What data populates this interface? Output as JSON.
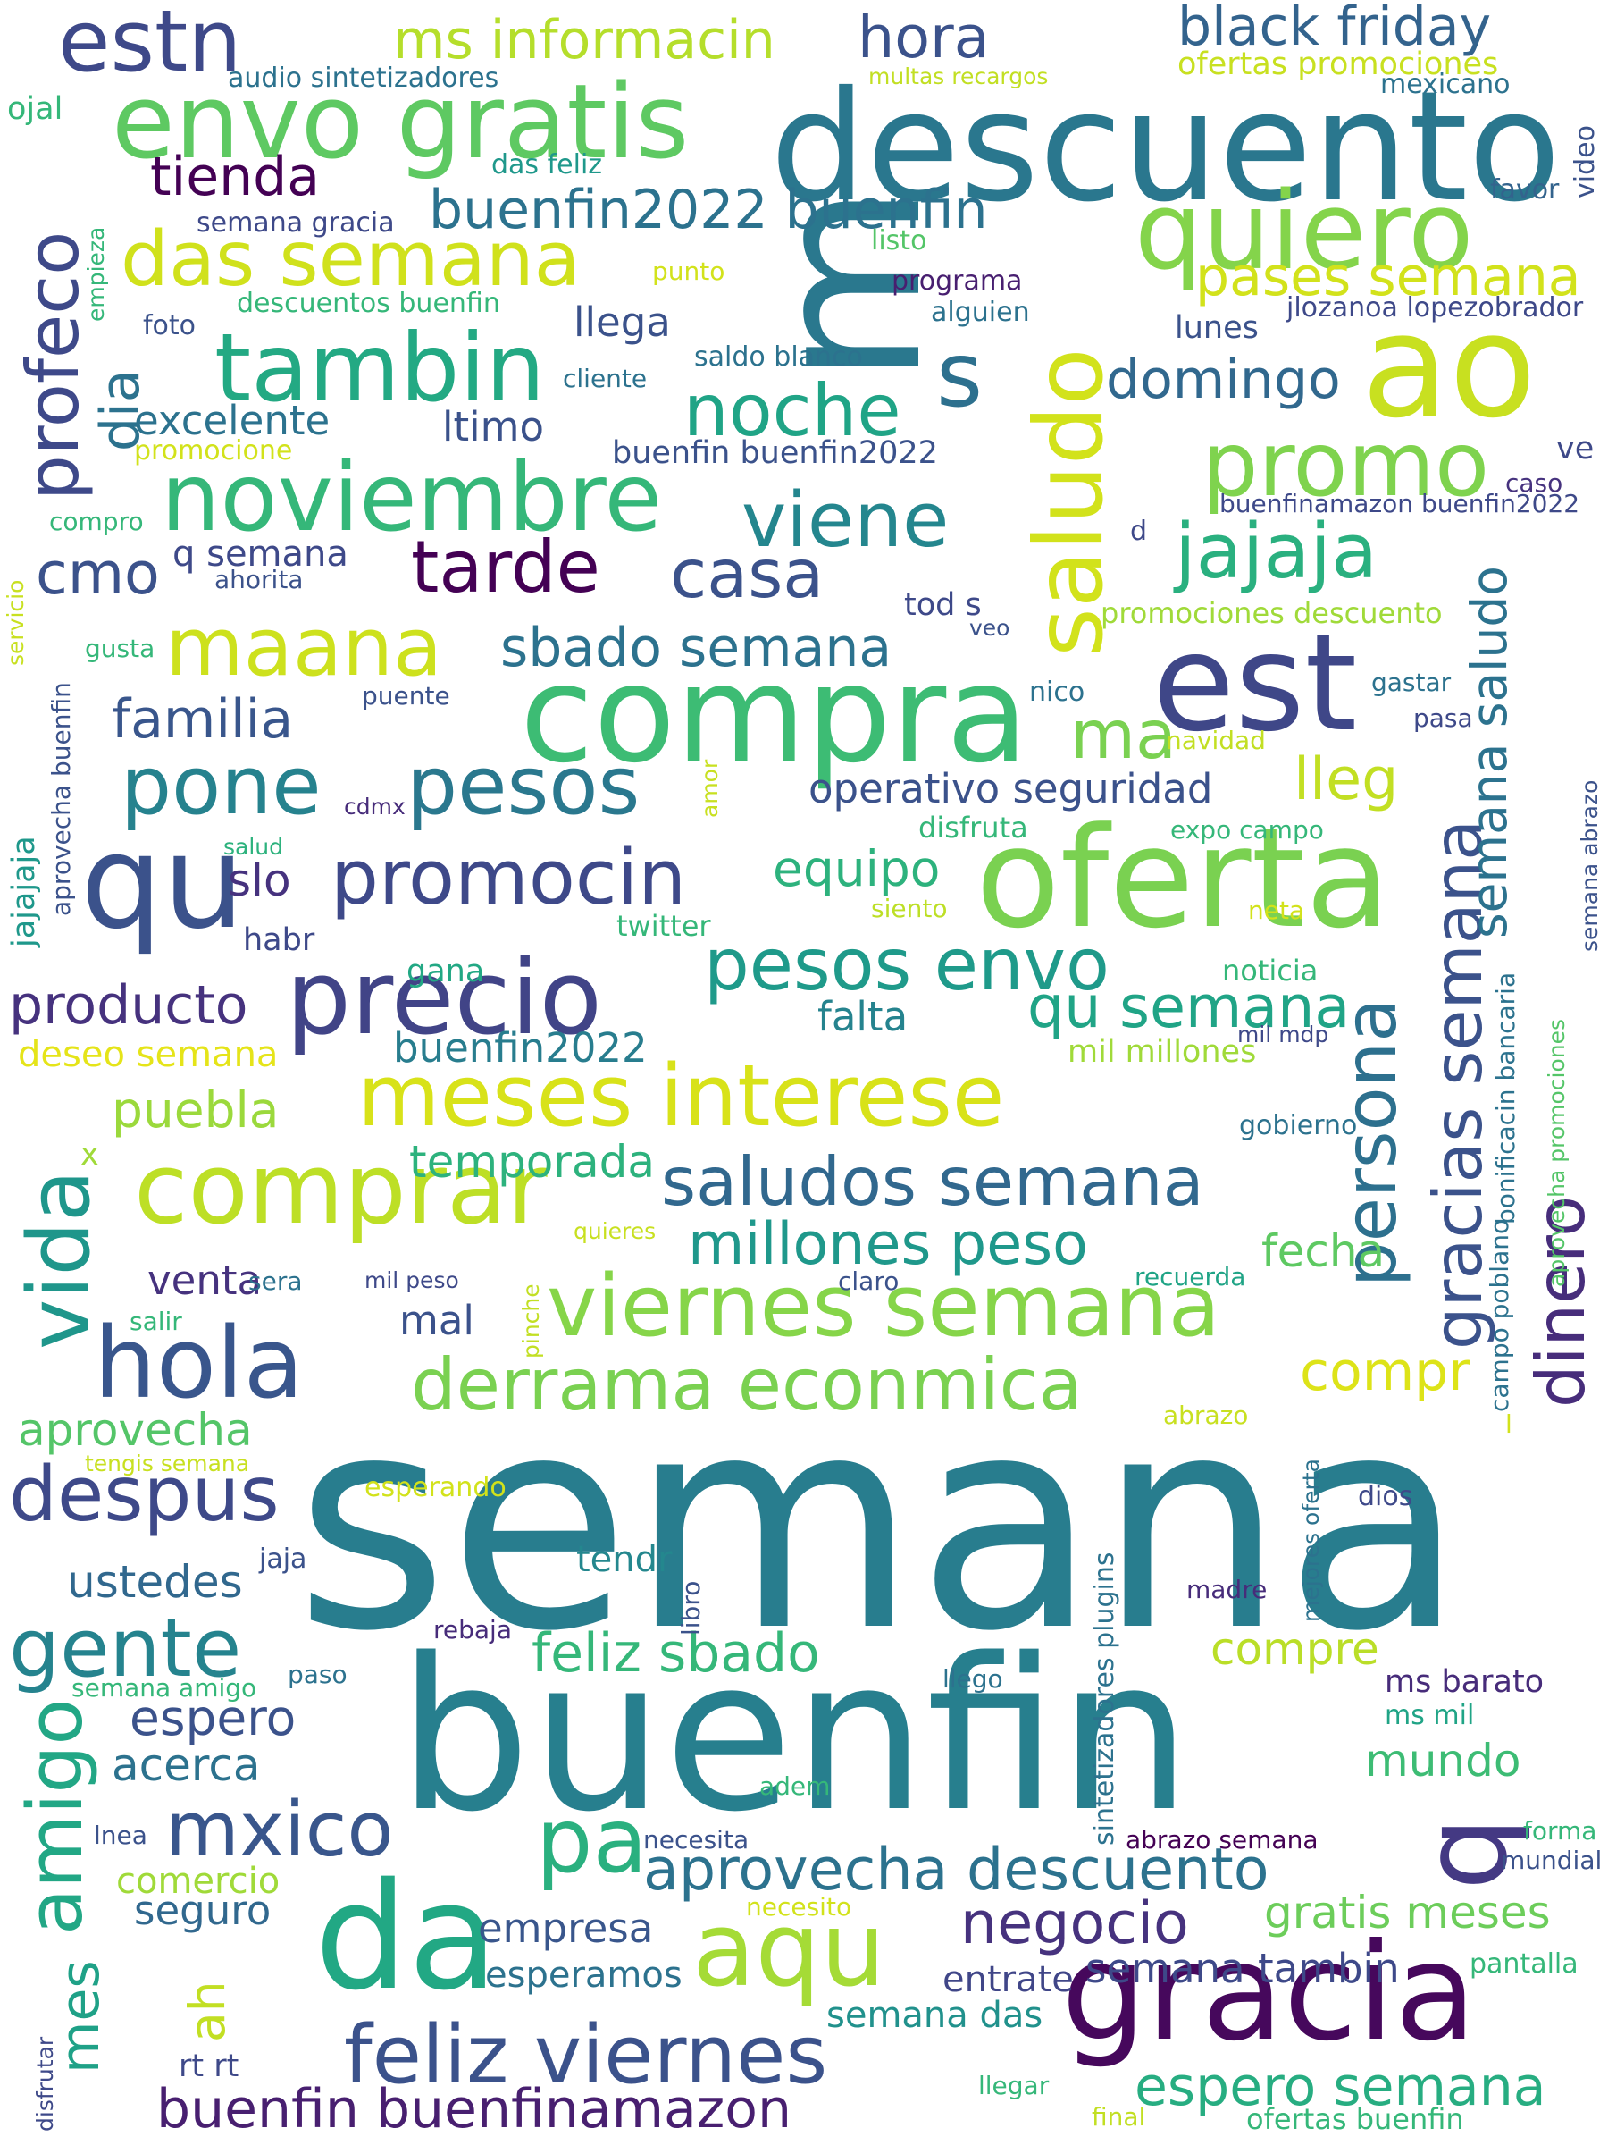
{
  "words": [
    {
      "text": "semana",
      "color": "#287d8e"
    },
    {
      "text": "buenfin",
      "color": "#277f8e"
    },
    {
      "text": "descuento",
      "color": "#2a778e"
    },
    {
      "text": "compra",
      "color": "#3dbc74"
    },
    {
      "text": "oferta",
      "color": "#7ad151"
    },
    {
      "text": "gracia",
      "color": "#46085c"
    },
    {
      "text": "m",
      "color": "#2a788e"
    },
    {
      "text": "ao",
      "color": "#c8e020"
    },
    {
      "text": "est",
      "color": "#3f4788"
    },
    {
      "text": "envo gratis",
      "color": "#5ec962"
    },
    {
      "text": "estn",
      "color": "#3e4989"
    },
    {
      "text": "hora",
      "color": "#3b528b"
    },
    {
      "text": "black friday",
      "color": "#33638d"
    },
    {
      "text": "ms informacin",
      "color": "#b5de2b"
    },
    {
      "text": "quiero",
      "color": "#84d44b"
    },
    {
      "text": "tienda",
      "color": "#440154"
    },
    {
      "text": "buenfin2022 buenfin",
      "color": "#2c728e"
    },
    {
      "text": "das semana",
      "color": "#d0e11c"
    },
    {
      "text": "pases semana",
      "color": "#d2e21b"
    },
    {
      "text": "tambin",
      "color": "#23a983"
    },
    {
      "text": "noche",
      "color": "#20a486"
    },
    {
      "text": "s",
      "color": "#2d708e"
    },
    {
      "text": "promo",
      "color": "#7fd34e"
    },
    {
      "text": "domingo",
      "color": "#31688e"
    },
    {
      "text": "noviembre",
      "color": "#35b779"
    },
    {
      "text": "viene",
      "color": "#24868e"
    },
    {
      "text": "jajaja",
      "color": "#2ab07f"
    },
    {
      "text": "tarde",
      "color": "#440154"
    },
    {
      "text": "casa",
      "color": "#3b528b"
    },
    {
      "text": "maana",
      "color": "#cde11d"
    },
    {
      "text": "sbado semana",
      "color": "#2c728e"
    },
    {
      "text": "familia",
      "color": "#39568c"
    },
    {
      "text": "pone",
      "color": "#26828e"
    },
    {
      "text": "pesos",
      "color": "#2a788e"
    },
    {
      "text": "qu",
      "color": "#3b528b"
    },
    {
      "text": "promocin",
      "color": "#3e4989"
    },
    {
      "text": "precio",
      "color": "#414487"
    },
    {
      "text": "pesos envo",
      "color": "#1f9a8a"
    },
    {
      "text": "meses interese",
      "color": "#d8e219"
    },
    {
      "text": "saludos semana",
      "color": "#31688e"
    },
    {
      "text": "comprar",
      "color": "#bddf26"
    },
    {
      "text": "hola",
      "color": "#39568c"
    },
    {
      "text": "viernes semana",
      "color": "#86d549"
    },
    {
      "text": "derrama econmica",
      "color": "#7ad151"
    },
    {
      "text": "millones peso",
      "color": "#1f988b"
    },
    {
      "text": "dinero",
      "color": "#472d7b"
    },
    {
      "text": "gracias semana",
      "color": "#3b528b"
    },
    {
      "text": "persona",
      "color": "#2d708e"
    },
    {
      "text": "saludo",
      "color": "#d2e21b"
    },
    {
      "text": "semana saludo",
      "color": "#2c728e"
    },
    {
      "text": "profeco",
      "color": "#3e4989"
    },
    {
      "text": "dia",
      "color": "#2c728e"
    },
    {
      "text": "vida",
      "color": "#1f968b"
    },
    {
      "text": "amigo",
      "color": "#22a785"
    },
    {
      "text": "mes",
      "color": "#1fa187"
    },
    {
      "text": "gente",
      "color": "#25838e"
    },
    {
      "text": "despus",
      "color": "#3e4989"
    },
    {
      "text": "mxico",
      "color": "#39568c"
    },
    {
      "text": "da",
      "color": "#22a884"
    },
    {
      "text": "aqu",
      "color": "#a5db36"
    },
    {
      "text": "pa",
      "color": "#2ab07f"
    },
    {
      "text": "q",
      "color": "#443983"
    },
    {
      "text": "aprovecha descuento",
      "color": "#2c728e"
    },
    {
      "text": "feliz viernes",
      "color": "#3b528b"
    },
    {
      "text": "buenfin buenfinamazon",
      "color": "#481f70"
    },
    {
      "text": "espero semana",
      "color": "#27ad81"
    },
    {
      "text": "negocio",
      "color": "#46327e"
    },
    {
      "text": "ah",
      "color": "#c2df23"
    },
    {
      "text": "feliz sbado",
      "color": "#35b779"
    },
    {
      "text": "espero",
      "color": "#3b528b"
    },
    {
      "text": "acerca",
      "color": "#2c728e"
    },
    {
      "text": "ustedes",
      "color": "#31688e"
    },
    {
      "text": "aprovecha",
      "color": "#54c568"
    },
    {
      "text": "compre",
      "color": "#bade28"
    },
    {
      "text": "mundo",
      "color": "#3dbc74"
    },
    {
      "text": "gratis meses",
      "color": "#6ccd5a"
    },
    {
      "text": "semana tambin",
      "color": "#3e4989"
    },
    {
      "text": "empresa",
      "color": "#39568c"
    },
    {
      "text": "esperamos",
      "color": "#2c728e"
    },
    {
      "text": "entrate",
      "color": "#404688"
    },
    {
      "text": "semana das",
      "color": "#21918c"
    },
    {
      "text": "seguro",
      "color": "#31688e"
    },
    {
      "text": "comercio",
      "color": "#a0da39"
    },
    {
      "text": "rt rt",
      "color": "#3e4989"
    },
    {
      "text": "tendr",
      "color": "#24878e"
    },
    {
      "text": "compr",
      "color": "#dde318"
    },
    {
      "text": "venta",
      "color": "#46327e"
    },
    {
      "text": "mal",
      "color": "#3b528b"
    },
    {
      "text": "fecha",
      "color": "#5ec962"
    },
    {
      "text": "temporada",
      "color": "#2db27d"
    },
    {
      "text": "puebla",
      "color": "#9bd93c"
    },
    {
      "text": "buenfin2022",
      "color": "#287d8e"
    },
    {
      "text": "producto",
      "color": "#46327e"
    },
    {
      "text": "deseo semana",
      "color": "#e5e419"
    },
    {
      "text": "falta",
      "color": "#25838e"
    },
    {
      "text": "qu semana",
      "color": "#20a486"
    },
    {
      "text": "mil millones",
      "color": "#a0da39"
    },
    {
      "text": "equipo",
      "color": "#2db27d"
    },
    {
      "text": "slo",
      "color": "#46327e"
    },
    {
      "text": "gana",
      "color": "#22a884"
    },
    {
      "text": "habr",
      "color": "#3e4989"
    },
    {
      "text": "lleg",
      "color": "#c2df23"
    },
    {
      "text": "ma",
      "color": "#7ad151"
    },
    {
      "text": "operativo seguridad",
      "color": "#3b528b"
    },
    {
      "text": "cmo",
      "color": "#3b528b"
    },
    {
      "text": "q semana",
      "color": "#3e4989"
    },
    {
      "text": "excelente",
      "color": "#2c728e"
    },
    {
      "text": "ltimo",
      "color": "#3b528b"
    },
    {
      "text": "llega",
      "color": "#3b528b"
    },
    {
      "text": "buenfin buenfin2022",
      "color": "#3b528b"
    },
    {
      "text": "saldo blanco",
      "color": "#2c728e"
    },
    {
      "text": "ms barato",
      "color": "#472c7a"
    },
    {
      "text": "ms mil",
      "color": "#20a486"
    },
    {
      "text": "audio sintetizadores",
      "color": "#2c728e"
    },
    {
      "text": "ojal",
      "color": "#35b779"
    },
    {
      "text": "multas recargos",
      "color": "#c2df23"
    },
    {
      "text": "ofertas promociones",
      "color": "#c8e020"
    },
    {
      "text": "mexicano",
      "color": "#2c728e"
    },
    {
      "text": "das feliz",
      "color": "#1f988b"
    },
    {
      "text": "favor",
      "color": "#33638d"
    },
    {
      "text": "video",
      "color": "#3b528b"
    },
    {
      "text": "semana gracia",
      "color": "#3e4989"
    },
    {
      "text": "listo",
      "color": "#54c568"
    },
    {
      "text": "punto",
      "color": "#d2e21b"
    },
    {
      "text": "programa",
      "color": "#481f70"
    },
    {
      "text": "alguien",
      "color": "#2c728e"
    },
    {
      "text": "jlozanoa lopezobrador",
      "color": "#3e4989"
    },
    {
      "text": "empieza",
      "color": "#35b779"
    },
    {
      "text": "descuentos buenfin",
      "color": "#35b779"
    },
    {
      "text": "foto",
      "color": "#3b528b"
    },
    {
      "text": "lunes",
      "color": "#3b528b"
    },
    {
      "text": "cliente",
      "color": "#2c728e"
    },
    {
      "text": "promocione",
      "color": "#d2e21b"
    },
    {
      "text": "ve",
      "color": "#3e4989"
    },
    {
      "text": "caso",
      "color": "#46327e"
    },
    {
      "text": "buenfinamazon buenfin2022",
      "color": "#3e4989"
    },
    {
      "text": "compro",
      "color": "#35b779"
    },
    {
      "text": "d",
      "color": "#3e4989"
    },
    {
      "text": "servicio",
      "color": "#c8e020"
    },
    {
      "text": "ahorita",
      "color": "#3b528b"
    },
    {
      "text": "tod s",
      "color": "#3e4989"
    },
    {
      "text": "veo",
      "color": "#3b528b"
    },
    {
      "text": "promociones descuento",
      "color": "#a0da39"
    },
    {
      "text": "gusta",
      "color": "#35b779"
    },
    {
      "text": "gastar",
      "color": "#2c728e"
    },
    {
      "text": "nico",
      "color": "#2c728e"
    },
    {
      "text": "puente",
      "color": "#3b528b"
    },
    {
      "text": "pasa",
      "color": "#3e4989"
    },
    {
      "text": "navidad",
      "color": "#c2df23"
    },
    {
      "text": "cdmx",
      "color": "#472c7a"
    },
    {
      "text": "aprovecha buenfin",
      "color": "#3b528b"
    },
    {
      "text": "jajajaja",
      "color": "#1f988b"
    },
    {
      "text": "amor",
      "color": "#c8e020"
    },
    {
      "text": "disfruta",
      "color": "#35b779"
    },
    {
      "text": "salud",
      "color": "#2db27d"
    },
    {
      "text": "expo campo",
      "color": "#35b779"
    },
    {
      "text": "semana abrazo",
      "color": "#3b528b"
    },
    {
      "text": "siento",
      "color": "#bddf26"
    },
    {
      "text": "neta",
      "color": "#d2e21b"
    },
    {
      "text": "twitter",
      "color": "#35b779"
    },
    {
      "text": "noticia",
      "color": "#35b779"
    },
    {
      "text": "bonificacin bancaria",
      "color": "#2c728e"
    },
    {
      "text": "aprovecha promociones",
      "color": "#54c568"
    },
    {
      "text": "mil mdp",
      "color": "#3e4989"
    },
    {
      "text": "gobierno",
      "color": "#2c728e"
    },
    {
      "text": "x",
      "color": "#a0da39"
    },
    {
      "text": "quieres",
      "color": "#c8e020"
    },
    {
      "text": "campo poblano",
      "color": "#2c728e"
    },
    {
      "text": "sera",
      "color": "#2c728e"
    },
    {
      "text": "mil peso",
      "color": "#3e4989"
    },
    {
      "text": "claro",
      "color": "#3b528b"
    },
    {
      "text": "recuerda",
      "color": "#20a486"
    },
    {
      "text": "salir",
      "color": "#35b779"
    },
    {
      "text": "pinche",
      "color": "#c2df23"
    },
    {
      "text": "abrazo",
      "color": "#c8e020"
    },
    {
      "text": "l",
      "color": "#d2e21b"
    },
    {
      "text": "tengis semana",
      "color": "#c8e020"
    },
    {
      "text": "esperando",
      "color": "#d2e21b"
    },
    {
      "text": "dios",
      "color": "#3e4989"
    },
    {
      "text": "sintetizadores plugins",
      "color": "#2c728e"
    },
    {
      "text": "mejores oferta",
      "color": "#2c728e"
    },
    {
      "text": "jaja",
      "color": "#3b528b"
    },
    {
      "text": "libro",
      "color": "#3b528b"
    },
    {
      "text": "madre",
      "color": "#472c7a"
    },
    {
      "text": "rebaja",
      "color": "#472c7a"
    },
    {
      "text": "semana amigo",
      "color": "#35b779"
    },
    {
      "text": "paso",
      "color": "#2c728e"
    },
    {
      "text": "llego",
      "color": "#2c728e"
    },
    {
      "text": "adem",
      "color": "#35b779"
    },
    {
      "text": "lnea",
      "color": "#3b528b"
    },
    {
      "text": "necesita",
      "color": "#3b528b"
    },
    {
      "text": "abrazo semana",
      "color": "#440154"
    },
    {
      "text": "forma",
      "color": "#35b779"
    },
    {
      "text": "mundial",
      "color": "#3b528b"
    },
    {
      "text": "necesito",
      "color": "#d2e21b"
    },
    {
      "text": "pantalla",
      "color": "#35b779"
    },
    {
      "text": "disfrutar",
      "color": "#3e4989"
    },
    {
      "text": "llegar",
      "color": "#35b779"
    },
    {
      "text": "final",
      "color": "#c2df23"
    },
    {
      "text": "ofertas buenfin",
      "color": "#35b779"
    }
  ]
}
